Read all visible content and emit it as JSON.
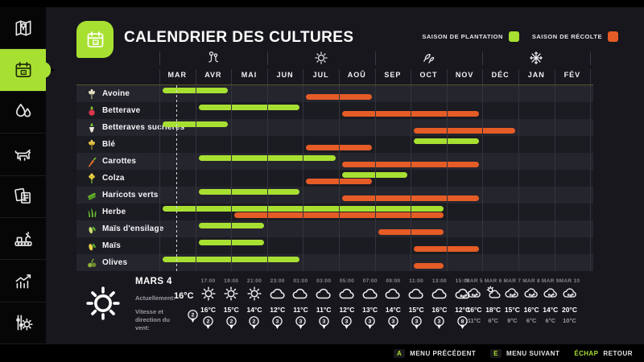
{
  "header": {
    "title": "CALENDRIER DES CULTURES"
  },
  "legend": {
    "items": [
      {
        "key": "plantation",
        "label": "SAISON DE PLANTATION",
        "color": "#a8e032"
      },
      {
        "key": "recolte",
        "label": "SAISON DE RÉCOLTE",
        "color": "#e55c26"
      }
    ]
  },
  "sidebar": {
    "items": [
      {
        "id": "map",
        "icon": "map-icon",
        "active": false
      },
      {
        "id": "calendar",
        "icon": "calendar-icon",
        "active": true
      },
      {
        "id": "water",
        "icon": "water-drops-icon",
        "active": false
      },
      {
        "id": "animals",
        "icon": "animal-icon",
        "active": false
      },
      {
        "id": "contracts",
        "icon": "documents-icon",
        "active": false
      },
      {
        "id": "production",
        "icon": "production-icon",
        "active": false
      },
      {
        "id": "statistics",
        "icon": "stats-icon",
        "active": false
      },
      {
        "id": "settings",
        "icon": "settings-icon",
        "active": false
      }
    ]
  },
  "chart_data": {
    "type": "gantt",
    "title": "CALENDRIER DES CULTURES",
    "months": [
      "MAR",
      "AVR",
      "MAI",
      "JUN",
      "JUL",
      "AOÛ",
      "SEP",
      "OCT",
      "NOV",
      "DÉC",
      "JAN",
      "FÉV"
    ],
    "season_icons": [
      "spring-flower-icon",
      "summer-sun-icon",
      "autumn-leaves-icon",
      "winter-snowflake-icon"
    ],
    "current_day_marker": {
      "month_index": 1,
      "fraction": 0.46
    },
    "series_colors": {
      "plant": "#a8e032",
      "harvest": "#e55c26"
    },
    "crops": [
      {
        "name": "Avoine",
        "icon": "oats",
        "plant_months": [
          1,
          2
        ],
        "harvest_months": [
          5,
          6
        ]
      },
      {
        "name": "Betterave",
        "icon": "red-beet",
        "plant_months": [
          2,
          4
        ],
        "harvest_months": [
          6,
          9
        ]
      },
      {
        "name": "Betteraves sucrières",
        "icon": "sugar-beet",
        "plant_months": [
          1,
          2
        ],
        "harvest_months": [
          8,
          10
        ]
      },
      {
        "name": "Blé",
        "icon": "wheat",
        "plant_months": [
          8,
          9
        ],
        "harvest_months": [
          5,
          6
        ]
      },
      {
        "name": "Carottes",
        "icon": "carrot",
        "plant_months": [
          2,
          5
        ],
        "harvest_months": [
          6,
          9
        ]
      },
      {
        "name": "Colza",
        "icon": "canola",
        "plant_months": [
          6,
          7
        ],
        "harvest_months": [
          5,
          6
        ]
      },
      {
        "name": "Haricots verts",
        "icon": "green-beans",
        "plant_months": [
          2,
          4
        ],
        "harvest_months": [
          6,
          9
        ]
      },
      {
        "name": "Herbe",
        "icon": "grass",
        "plant_months": [
          1,
          8
        ],
        "harvest_months": [
          3,
          8
        ]
      },
      {
        "name": "Maïs d'ensilage",
        "icon": "silage-corn",
        "plant_months": [
          2,
          3
        ],
        "harvest_months": [
          7,
          8
        ]
      },
      {
        "name": "Maïs",
        "icon": "corn",
        "plant_months": [
          2,
          3
        ],
        "harvest_months": [
          8,
          9
        ]
      },
      {
        "name": "Olives",
        "icon": "olives",
        "plant_months": [
          1,
          4
        ],
        "harvest_months": [
          8,
          8
        ]
      }
    ]
  },
  "weather": {
    "current": {
      "date": "MARS 4",
      "condition_icon": "sun-icon",
      "now_label": "Actuellement:",
      "now_temp": "16°C",
      "wind_label": "Vitesse et direction du vent:",
      "wind_speed": "2"
    },
    "hourly": [
      {
        "time": "17:00",
        "icon": "sun",
        "temp": "16°C",
        "wind": "2"
      },
      {
        "time": "19:00",
        "icon": "sun",
        "temp": "15°C",
        "wind": "2"
      },
      {
        "time": "21:00",
        "icon": "sun",
        "temp": "14°C",
        "wind": "2"
      },
      {
        "time": "23:00",
        "icon": "cloud",
        "temp": "12°C",
        "wind": "3"
      },
      {
        "time": "01:00",
        "icon": "cloud",
        "temp": "11°C",
        "wind": "3"
      },
      {
        "time": "03:00",
        "icon": "cloud",
        "temp": "11°C",
        "wind": "3"
      },
      {
        "time": "05:00",
        "icon": "cloud",
        "temp": "12°C",
        "wind": "3"
      },
      {
        "time": "07:00",
        "icon": "cloud",
        "temp": "13°C",
        "wind": "3"
      },
      {
        "time": "09:00",
        "icon": "cloud",
        "temp": "14°C",
        "wind": "3"
      },
      {
        "time": "11:00",
        "icon": "cloud",
        "temp": "15°C",
        "wind": "3"
      },
      {
        "time": "13:00",
        "icon": "cloud",
        "temp": "16°C",
        "wind": "3"
      },
      {
        "time": "15:00",
        "icon": "rain",
        "temp": "12°C",
        "wind": "8"
      }
    ],
    "daily": [
      {
        "day": "MAR 5",
        "icon": "rain",
        "high": "16°C",
        "low": "11°C"
      },
      {
        "day": "MAR 6",
        "icon": "partly",
        "high": "18°C",
        "low": "6°C"
      },
      {
        "day": "MAR 7",
        "icon": "rain",
        "high": "15°C",
        "low": "9°C"
      },
      {
        "day": "MAR 8",
        "icon": "rain",
        "high": "16°C",
        "low": "6°C"
      },
      {
        "day": "MAR 9",
        "icon": "rain",
        "high": "14°C",
        "low": "6°C"
      },
      {
        "day": "MAR 10",
        "icon": "rain",
        "high": "20°C",
        "low": "10°C"
      }
    ]
  },
  "bottom_bar": {
    "items": [
      {
        "key": "A",
        "label": "MENU PRÉCÉDENT"
      },
      {
        "key": "E",
        "label": "MENU SUIVANT"
      },
      {
        "key": "ÉCHAP",
        "label": "RETOUR"
      }
    ]
  }
}
